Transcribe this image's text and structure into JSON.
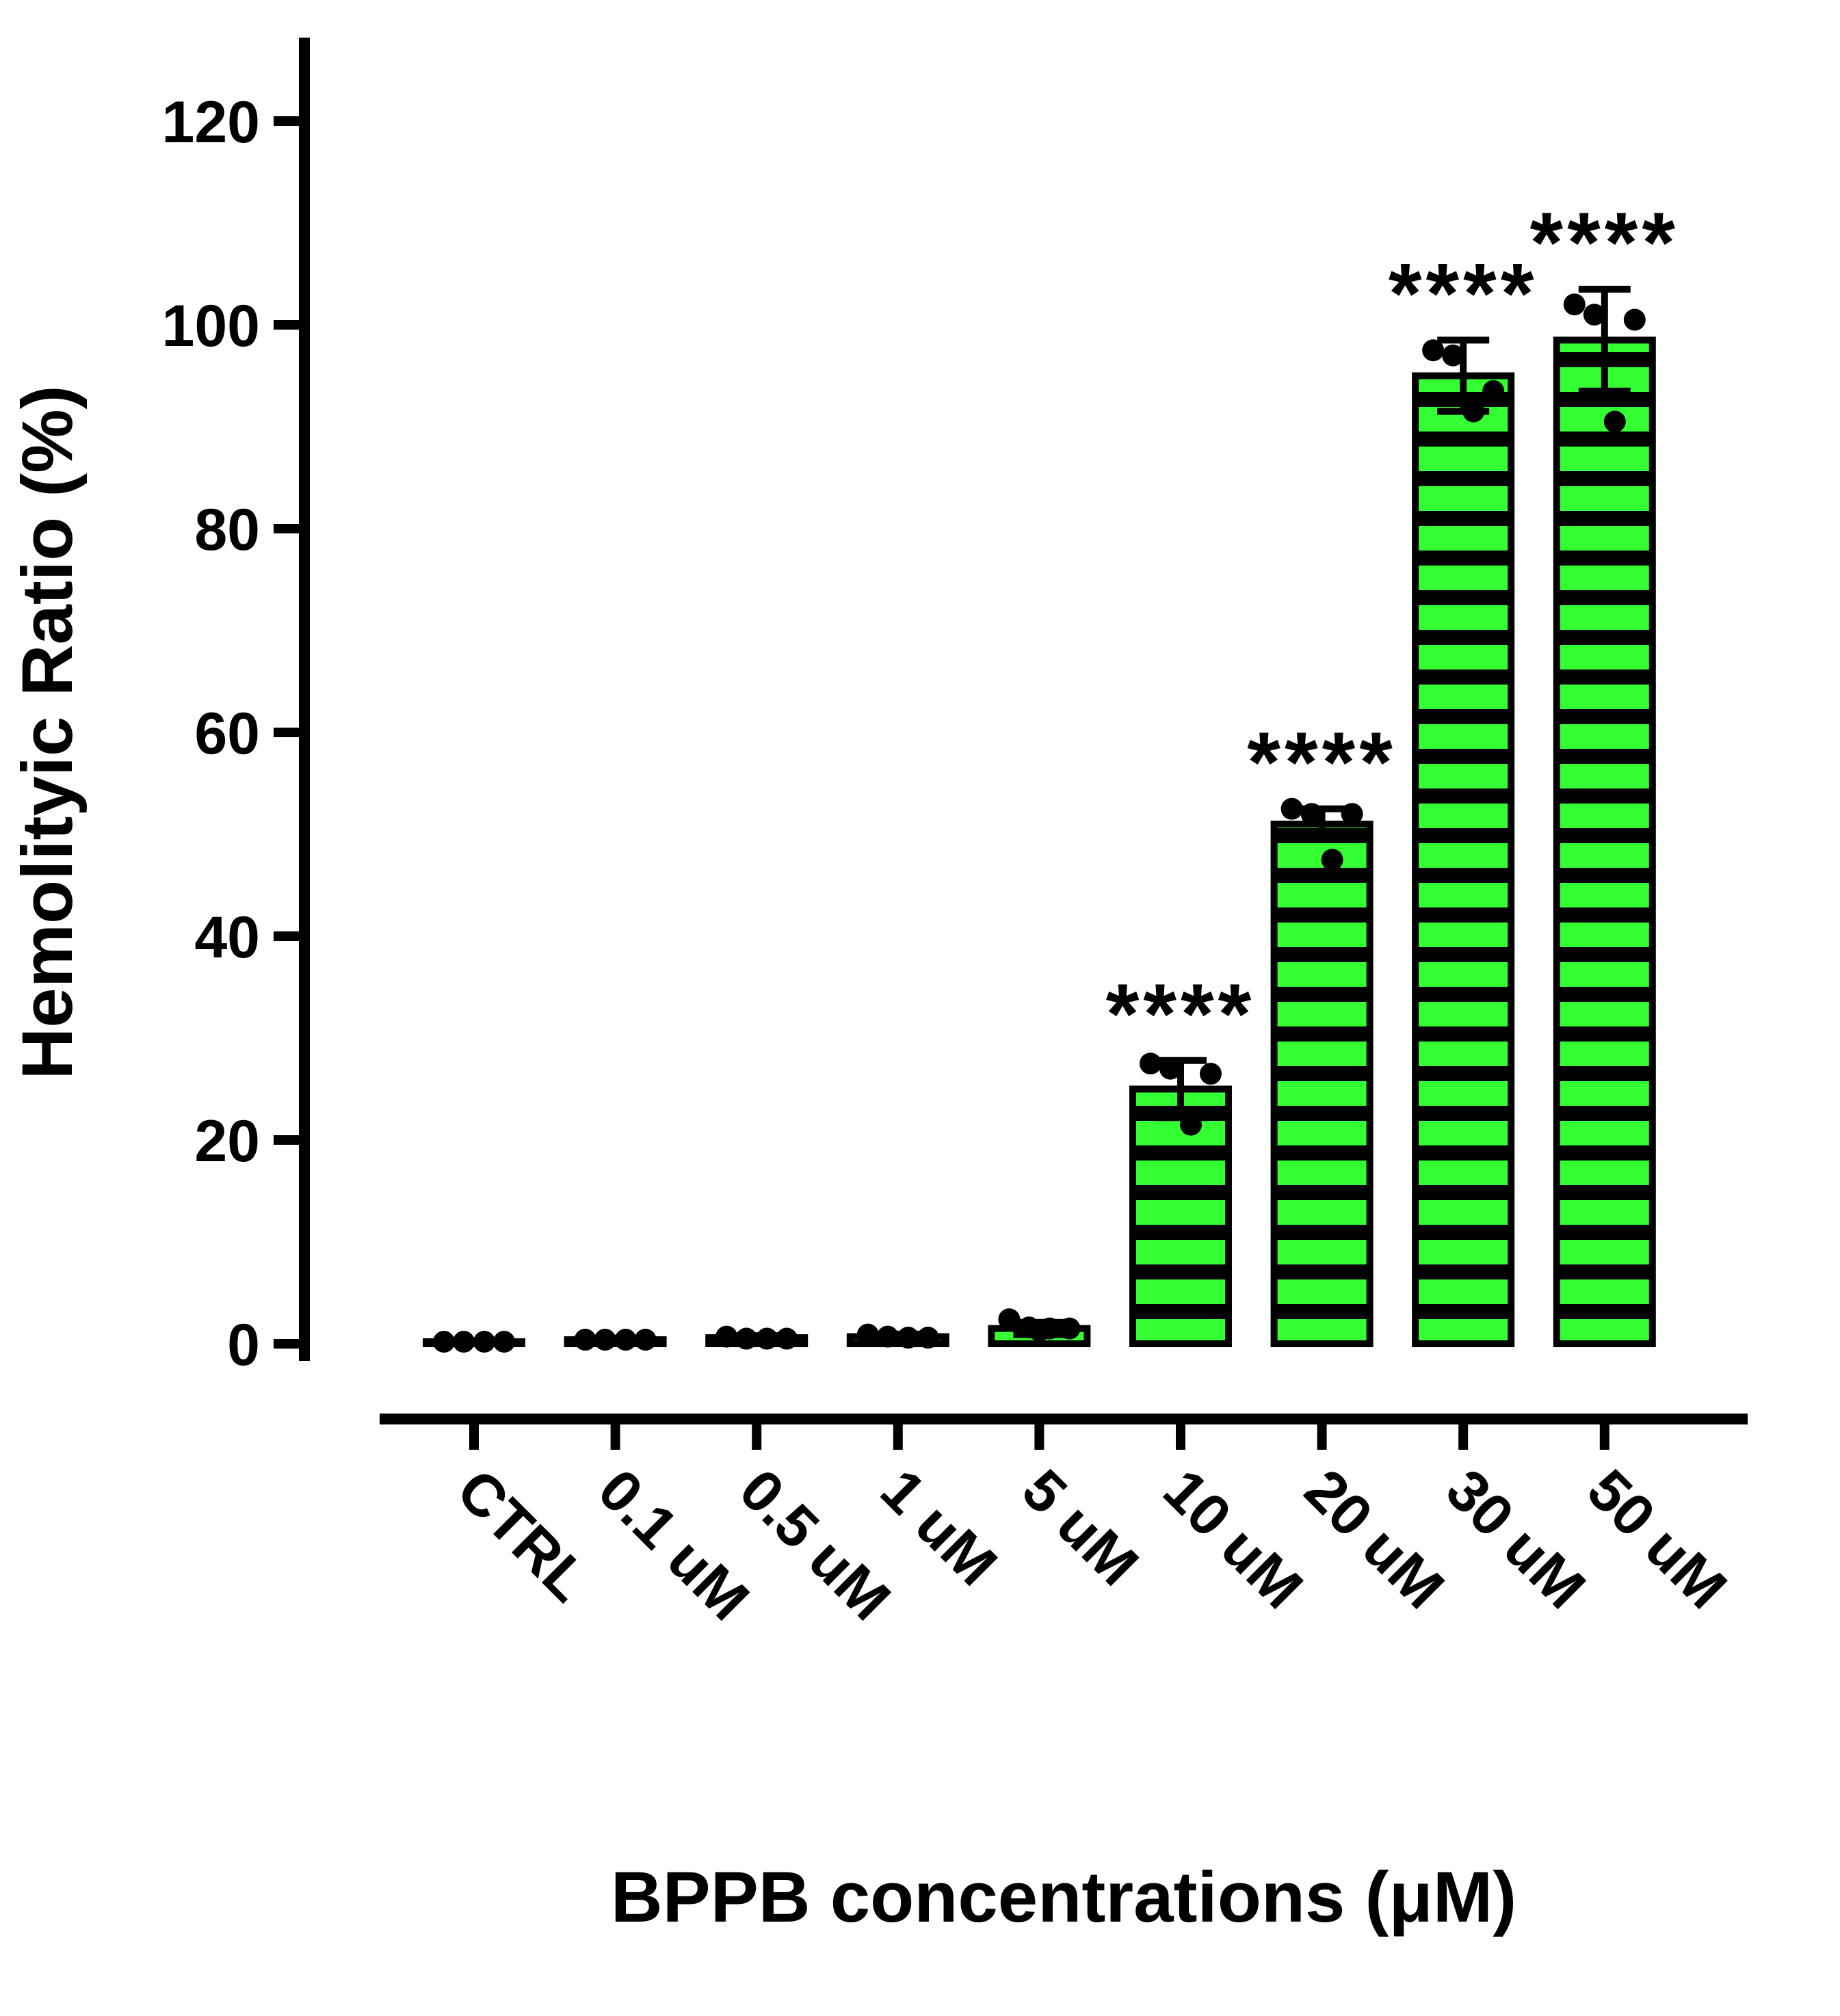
{
  "chart_data": {
    "type": "bar",
    "title": "",
    "xlabel": "BPPB concentrations (μM)",
    "ylabel": "Hemolityic Ratio (%)",
    "ylim": [
      0,
      130
    ],
    "yticks": [
      0,
      20,
      40,
      60,
      80,
      100,
      120
    ],
    "grid": false,
    "legend": false,
    "categories": [
      "CTRL",
      "0.1 uM",
      "0.5 uM",
      "1 uM",
      "5 uM",
      "10 uM",
      "20 uM",
      "30 uM",
      "50 uM"
    ],
    "values": [
      0.2,
      0.4,
      0.6,
      0.7,
      1.5,
      25,
      51,
      95,
      98.5
    ],
    "sd": [
      0.1,
      0.15,
      0.2,
      0.25,
      0.6,
      2.8,
      1.5,
      3.5,
      5
    ],
    "points": [
      [
        0.2,
        0.2,
        0.2,
        0.2
      ],
      [
        0.4,
        0.4,
        0.4,
        0.4
      ],
      [
        0.7,
        0.5,
        0.5,
        0.5
      ],
      [
        0.9,
        0.7,
        0.6,
        0.6
      ],
      [
        2.4,
        1.6,
        1.5,
        1.5,
        1.3
      ],
      [
        27.5,
        27,
        21.5,
        26.5
      ],
      [
        52.5,
        52,
        47.5,
        52
      ],
      [
        97.5,
        97,
        91.5,
        93.5
      ],
      [
        102,
        101,
        90.5,
        100.5
      ]
    ],
    "significance": [
      "",
      "",
      "",
      "",
      "",
      "****",
      "****",
      "****",
      "****"
    ],
    "bar_fill": "#33FF33",
    "stripe_color": "#000000",
    "axis_color": "#000000",
    "point_color": "#000000",
    "error_bar_color": "#000000"
  }
}
